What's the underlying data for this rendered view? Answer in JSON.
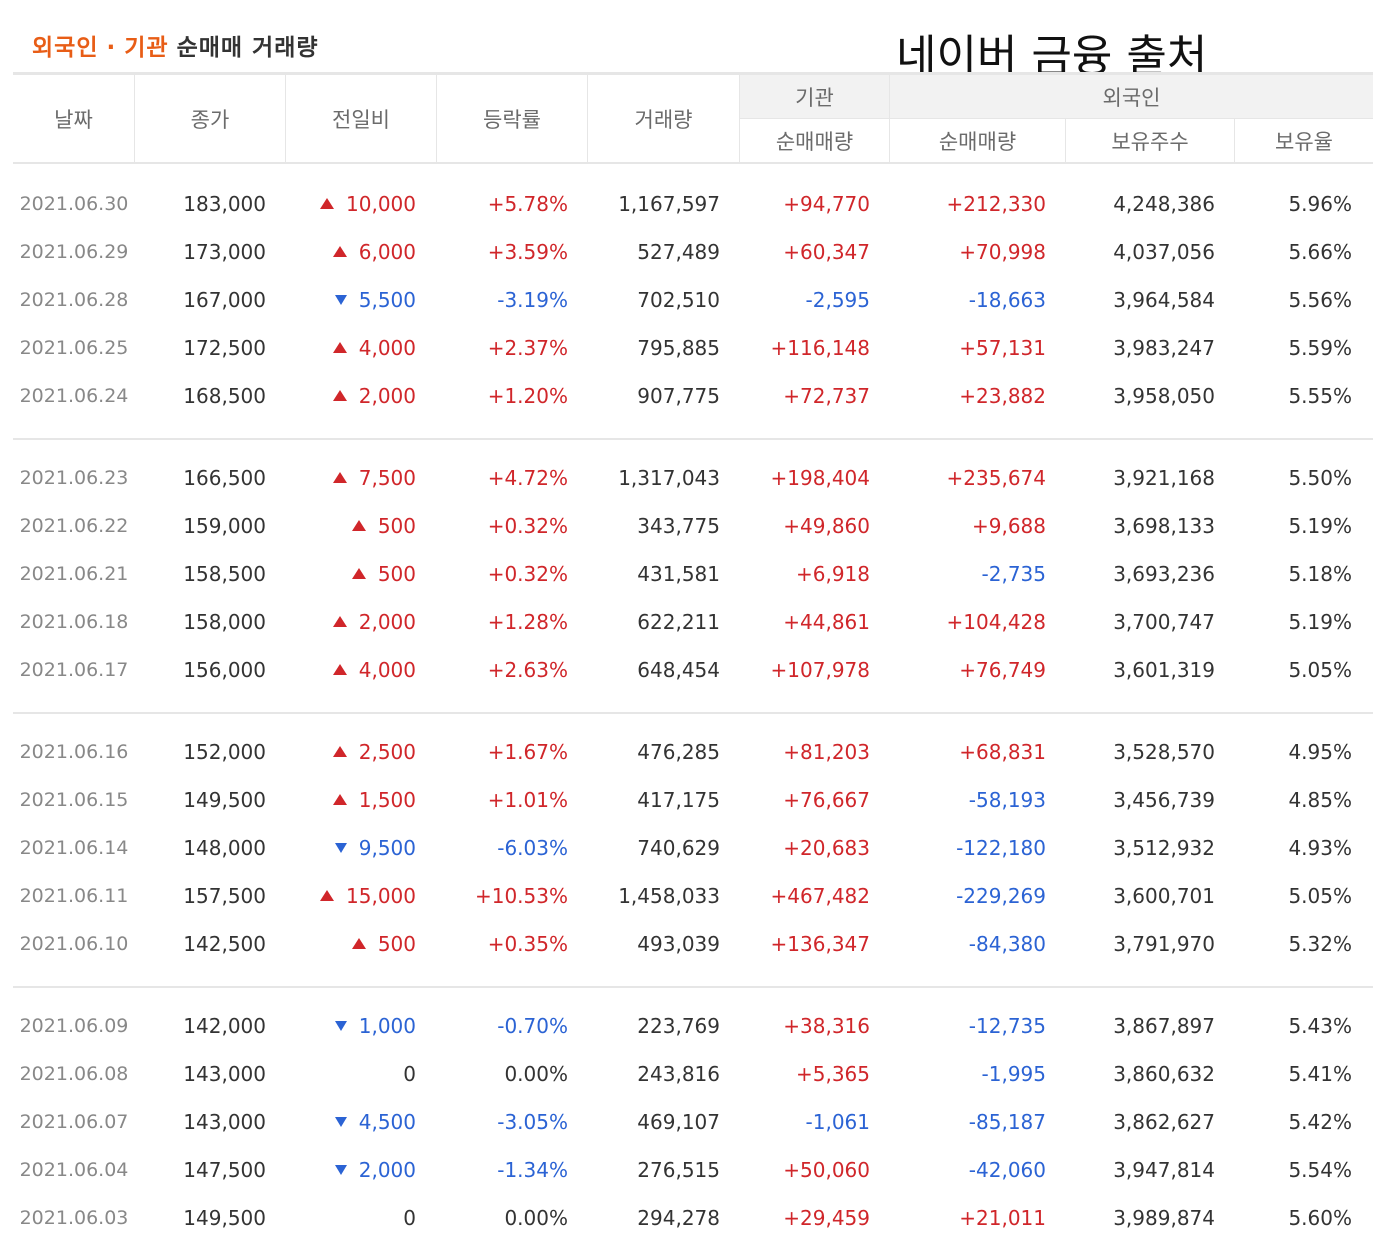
{
  "header": {
    "title_highlight_1": "외국인",
    "title_dot": "·",
    "title_highlight_2": "기관",
    "title_rest": "순매매 거래량",
    "source_note": "네이버 금융 출처"
  },
  "columns": {
    "date": "날짜",
    "close": "종가",
    "change": "전일비",
    "rate": "등락률",
    "volume": "거래량",
    "institution_group": "기관",
    "institution_net": "순매매량",
    "foreign_group": "외국인",
    "foreign_net": "순매매량",
    "foreign_holdings": "보유주수",
    "foreign_ratio": "보유율"
  },
  "colors": {
    "up": "#d0262a",
    "down": "#2b63d4",
    "accent": "#e85d16"
  },
  "groups": [
    [
      {
        "date": "2021.06.30",
        "close": "183,000",
        "dir": "up",
        "change": "10,000",
        "rate": "+5.78%",
        "volume": "1,167,597",
        "inst": "+94,770",
        "foreign": "+212,330",
        "holdings": "4,248,386",
        "ratio": "5.96%"
      },
      {
        "date": "2021.06.29",
        "close": "173,000",
        "dir": "up",
        "change": "6,000",
        "rate": "+3.59%",
        "volume": "527,489",
        "inst": "+60,347",
        "foreign": "+70,998",
        "holdings": "4,037,056",
        "ratio": "5.66%"
      },
      {
        "date": "2021.06.28",
        "close": "167,000",
        "dir": "down",
        "change": "5,500",
        "rate": "-3.19%",
        "volume": "702,510",
        "inst": "-2,595",
        "foreign": "-18,663",
        "holdings": "3,964,584",
        "ratio": "5.56%"
      },
      {
        "date": "2021.06.25",
        "close": "172,500",
        "dir": "up",
        "change": "4,000",
        "rate": "+2.37%",
        "volume": "795,885",
        "inst": "+116,148",
        "foreign": "+57,131",
        "holdings": "3,983,247",
        "ratio": "5.59%"
      },
      {
        "date": "2021.06.24",
        "close": "168,500",
        "dir": "up",
        "change": "2,000",
        "rate": "+1.20%",
        "volume": "907,775",
        "inst": "+72,737",
        "foreign": "+23,882",
        "holdings": "3,958,050",
        "ratio": "5.55%"
      }
    ],
    [
      {
        "date": "2021.06.23",
        "close": "166,500",
        "dir": "up",
        "change": "7,500",
        "rate": "+4.72%",
        "volume": "1,317,043",
        "inst": "+198,404",
        "foreign": "+235,674",
        "holdings": "3,921,168",
        "ratio": "5.50%"
      },
      {
        "date": "2021.06.22",
        "close": "159,000",
        "dir": "up",
        "change": "500",
        "rate": "+0.32%",
        "volume": "343,775",
        "inst": "+49,860",
        "foreign": "+9,688",
        "holdings": "3,698,133",
        "ratio": "5.19%"
      },
      {
        "date": "2021.06.21",
        "close": "158,500",
        "dir": "up",
        "change": "500",
        "rate": "+0.32%",
        "volume": "431,581",
        "inst": "+6,918",
        "foreign": "-2,735",
        "holdings": "3,693,236",
        "ratio": "5.18%"
      },
      {
        "date": "2021.06.18",
        "close": "158,000",
        "dir": "up",
        "change": "2,000",
        "rate": "+1.28%",
        "volume": "622,211",
        "inst": "+44,861",
        "foreign": "+104,428",
        "holdings": "3,700,747",
        "ratio": "5.19%"
      },
      {
        "date": "2021.06.17",
        "close": "156,000",
        "dir": "up",
        "change": "4,000",
        "rate": "+2.63%",
        "volume": "648,454",
        "inst": "+107,978",
        "foreign": "+76,749",
        "holdings": "3,601,319",
        "ratio": "5.05%"
      }
    ],
    [
      {
        "date": "2021.06.16",
        "close": "152,000",
        "dir": "up",
        "change": "2,500",
        "rate": "+1.67%",
        "volume": "476,285",
        "inst": "+81,203",
        "foreign": "+68,831",
        "holdings": "3,528,570",
        "ratio": "4.95%"
      },
      {
        "date": "2021.06.15",
        "close": "149,500",
        "dir": "up",
        "change": "1,500",
        "rate": "+1.01%",
        "volume": "417,175",
        "inst": "+76,667",
        "foreign": "-58,193",
        "holdings": "3,456,739",
        "ratio": "4.85%"
      },
      {
        "date": "2021.06.14",
        "close": "148,000",
        "dir": "down",
        "change": "9,500",
        "rate": "-6.03%",
        "volume": "740,629",
        "inst": "+20,683",
        "foreign": "-122,180",
        "holdings": "3,512,932",
        "ratio": "4.93%"
      },
      {
        "date": "2021.06.11",
        "close": "157,500",
        "dir": "up",
        "change": "15,000",
        "rate": "+10.53%",
        "volume": "1,458,033",
        "inst": "+467,482",
        "foreign": "-229,269",
        "holdings": "3,600,701",
        "ratio": "5.05%"
      },
      {
        "date": "2021.06.10",
        "close": "142,500",
        "dir": "up",
        "change": "500",
        "rate": "+0.35%",
        "volume": "493,039",
        "inst": "+136,347",
        "foreign": "-84,380",
        "holdings": "3,791,970",
        "ratio": "5.32%"
      }
    ],
    [
      {
        "date": "2021.06.09",
        "close": "142,000",
        "dir": "down",
        "change": "1,000",
        "rate": "-0.70%",
        "volume": "223,769",
        "inst": "+38,316",
        "foreign": "-12,735",
        "holdings": "3,867,897",
        "ratio": "5.43%"
      },
      {
        "date": "2021.06.08",
        "close": "143,000",
        "dir": "flat",
        "change": "0",
        "rate": "0.00%",
        "volume": "243,816",
        "inst": "+5,365",
        "foreign": "-1,995",
        "holdings": "3,860,632",
        "ratio": "5.41%"
      },
      {
        "date": "2021.06.07",
        "close": "143,000",
        "dir": "down",
        "change": "4,500",
        "rate": "-3.05%",
        "volume": "469,107",
        "inst": "-1,061",
        "foreign": "-85,187",
        "holdings": "3,862,627",
        "ratio": "5.42%"
      },
      {
        "date": "2021.06.04",
        "close": "147,500",
        "dir": "down",
        "change": "2,000",
        "rate": "-1.34%",
        "volume": "276,515",
        "inst": "+50,060",
        "foreign": "-42,060",
        "holdings": "3,947,814",
        "ratio": "5.54%"
      },
      {
        "date": "2021.06.03",
        "close": "149,500",
        "dir": "flat",
        "change": "0",
        "rate": "0.00%",
        "volume": "294,278",
        "inst": "+29,459",
        "foreign": "+21,011",
        "holdings": "3,989,874",
        "ratio": "5.60%"
      }
    ]
  ]
}
